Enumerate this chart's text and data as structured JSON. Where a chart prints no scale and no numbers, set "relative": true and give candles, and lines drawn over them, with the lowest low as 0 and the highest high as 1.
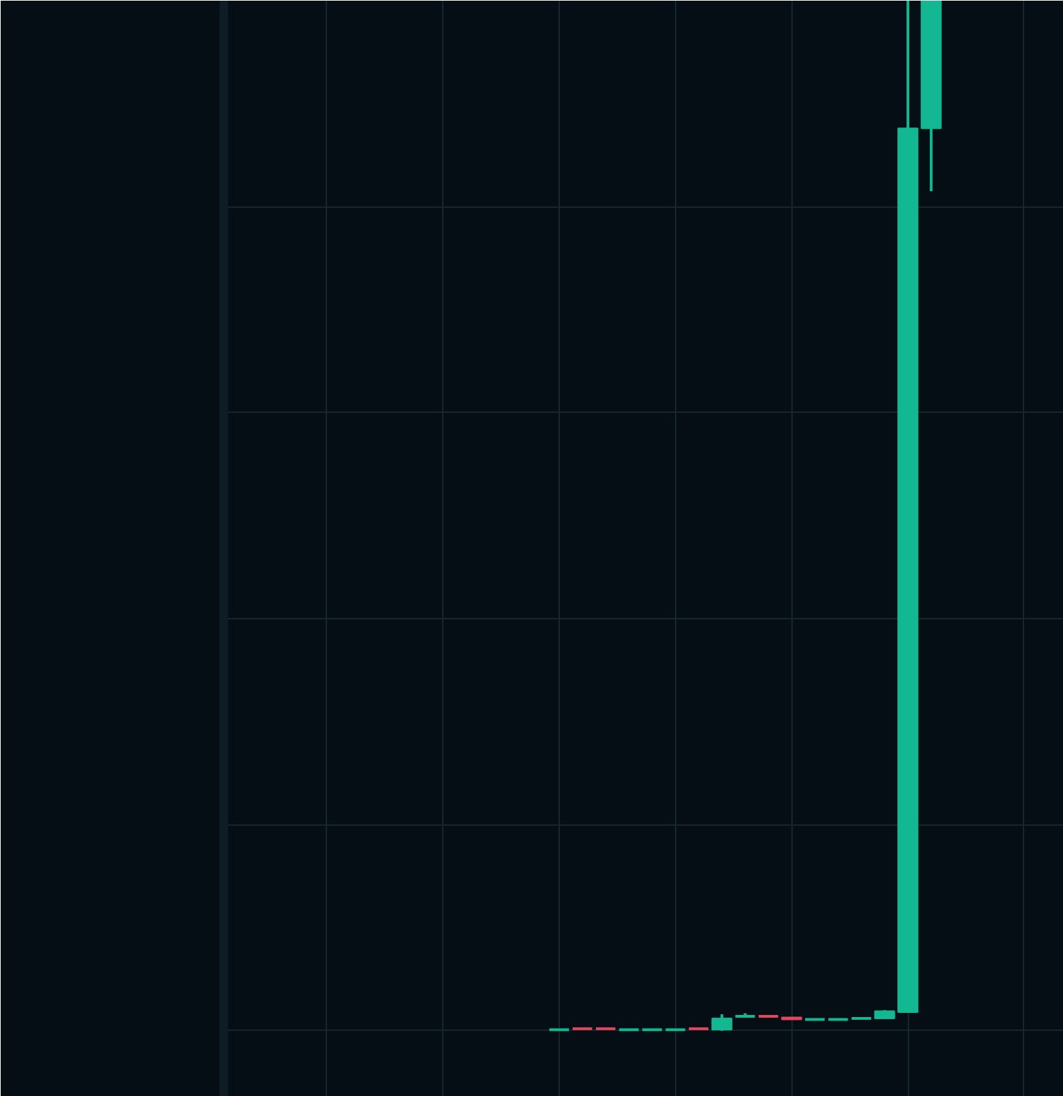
{
  "chart_data": {
    "type": "candlestick",
    "relative": true,
    "grid": true,
    "categories": [
      null,
      null,
      null,
      null,
      null,
      null,
      null,
      null,
      null,
      null,
      null,
      null,
      null,
      null,
      null,
      null,
      null
    ],
    "ohlc": [
      [
        0.001,
        0.001,
        0.001,
        0.001
      ],
      [
        0.002,
        0.002,
        0.001,
        0.001
      ],
      [
        0.002,
        0.002,
        0.001,
        0.001
      ],
      [
        0.001,
        0.001,
        0.001,
        0.001
      ],
      [
        0.001,
        0.001,
        0.001,
        0.001
      ],
      [
        0.001,
        0.001,
        0.001,
        0.001
      ],
      [
        0.002,
        0.002,
        0.001,
        0.001
      ],
      [
        0.001,
        0.016,
        0.0,
        0.012
      ],
      [
        0.013,
        0.017,
        0.013,
        0.014
      ],
      [
        0.014,
        0.014,
        0.013,
        0.013
      ],
      [
        0.013,
        0.013,
        0.011,
        0.011
      ],
      [
        0.01,
        0.011,
        0.01,
        0.011
      ],
      [
        0.01,
        0.011,
        0.01,
        0.011
      ],
      [
        0.011,
        0.012,
        0.011,
        0.012
      ],
      [
        0.012,
        0.02,
        0.012,
        0.019
      ],
      [
        0.018,
        1.0,
        0.018,
        0.876
      ],
      [
        0.876,
        1.0,
        0.815,
        1.0
      ]
    ],
    "colors": [
      "#12b892",
      "#e0475c",
      "#e0475c",
      "#12b892",
      "#12b892",
      "#12b892",
      "#e0475c",
      "#12b892",
      "#12b892",
      "#e0475c",
      "#e0475c",
      "#12b892",
      "#12b892",
      "#12b892",
      "#12b892",
      "#12b892",
      "#12b892"
    ]
  }
}
